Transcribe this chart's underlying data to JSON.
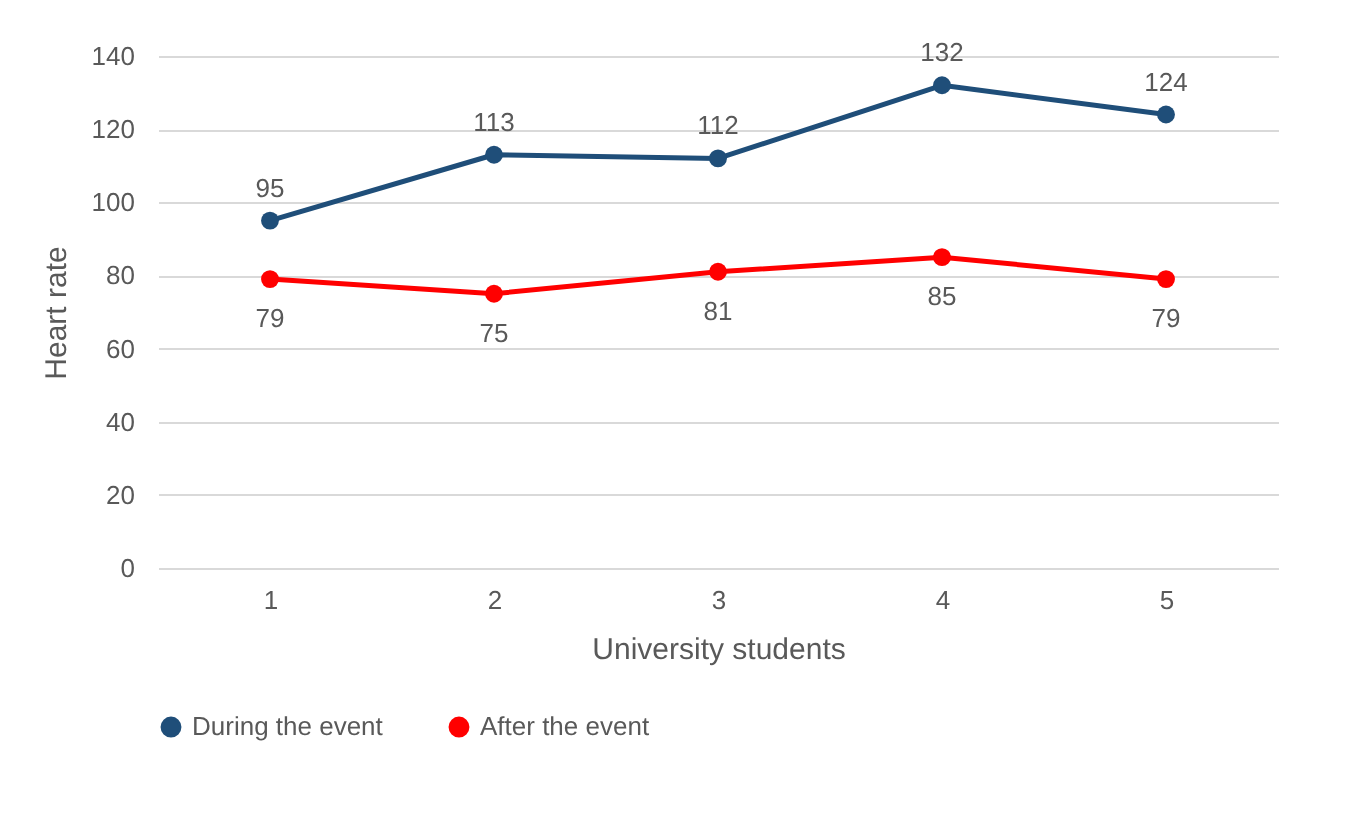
{
  "chart_data": {
    "type": "line",
    "xlabel": "University students",
    "ylabel": "Heart rate",
    "categories": [
      "1",
      "2",
      "3",
      "4",
      "5"
    ],
    "series": [
      {
        "name": "During the event",
        "color": "#1f4e79",
        "values": [
          95,
          113,
          112,
          132,
          124
        ]
      },
      {
        "name": "After the event",
        "color": "#ff0000",
        "values": [
          79,
          75,
          81,
          85,
          79
        ]
      }
    ],
    "ylim": [
      0,
      140
    ],
    "yticks": [
      0,
      20,
      40,
      60,
      80,
      100,
      120,
      140
    ],
    "grid": "y",
    "legend": "bottom",
    "marker": "circle",
    "line_style": "solid",
    "data_labels": true
  }
}
